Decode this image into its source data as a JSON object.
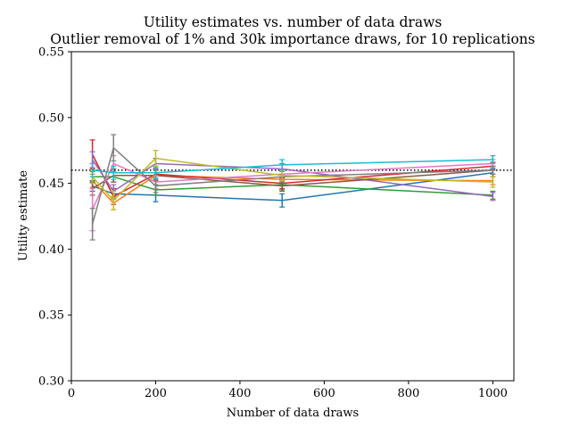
{
  "chart_data": {
    "type": "line",
    "title": "Utility estimates vs. number of data draws",
    "subtitle": "Outlier removal of 1% and 30k importance draws, for 10 replications",
    "xlabel": "Number of data draws",
    "ylabel": "Utility estimate",
    "xlim": [
      0,
      1050
    ],
    "ylim": [
      0.3,
      0.55
    ],
    "xticks": [
      0,
      200,
      400,
      600,
      800,
      1000
    ],
    "yticks": [
      0.3,
      0.35,
      0.4,
      0.45,
      0.5,
      0.55
    ],
    "xtick_labels": [
      "0",
      "200",
      "400",
      "600",
      "800",
      "1000"
    ],
    "ytick_labels": [
      "0.30",
      "0.35",
      "0.40",
      "0.45",
      "0.50",
      "0.55"
    ],
    "grid": false,
    "legend": false,
    "reference_line": {
      "y": 0.46,
      "style": "dotted",
      "color": "#000000"
    },
    "x": [
      50,
      100,
      200,
      500,
      1000
    ],
    "series": [
      {
        "color": "#1f77b4",
        "values": [
          0.448,
          0.442,
          0.441,
          0.437,
          0.458
        ],
        "errors": [
          0.004,
          0.004,
          0.005,
          0.005,
          0.003
        ]
      },
      {
        "color": "#ff7f0e",
        "values": [
          0.452,
          0.435,
          0.456,
          0.453,
          0.452
        ],
        "errors": [
          0.005,
          0.005,
          0.004,
          0.004,
          0.003
        ]
      },
      {
        "color": "#2ca02c",
        "values": [
          0.455,
          0.455,
          0.445,
          0.449,
          0.441
        ],
        "errors": [
          0.004,
          0.004,
          0.004,
          0.004,
          0.003
        ]
      },
      {
        "color": "#d62728",
        "values": [
          0.472,
          0.44,
          0.457,
          0.45,
          0.463
        ],
        "errors": [
          0.011,
          0.006,
          0.004,
          0.004,
          0.003
        ]
      },
      {
        "color": "#9467bd",
        "values": [
          0.468,
          0.444,
          0.465,
          0.461,
          0.44
        ],
        "errors": [
          0.006,
          0.005,
          0.004,
          0.004,
          0.003
        ]
      },
      {
        "color": "#8c564b",
        "values": [
          0.446,
          0.456,
          0.456,
          0.448,
          0.46
        ],
        "errors": [
          0.005,
          0.005,
          0.004,
          0.004,
          0.003
        ]
      },
      {
        "color": "#e377c2",
        "values": [
          0.43,
          0.465,
          0.451,
          0.457,
          0.465
        ],
        "errors": [
          0.016,
          0.006,
          0.005,
          0.004,
          0.003
        ]
      },
      {
        "color": "#7f7f7f",
        "values": [
          0.419,
          0.477,
          0.448,
          0.455,
          0.46
        ],
        "errors": [
          0.012,
          0.01,
          0.005,
          0.004,
          0.003
        ]
      },
      {
        "color": "#bcbd22",
        "values": [
          0.455,
          0.437,
          0.469,
          0.456,
          0.451
        ],
        "errors": [
          0.005,
          0.007,
          0.006,
          0.004,
          0.004
        ]
      },
      {
        "color": "#17becf",
        "values": [
          0.46,
          0.458,
          0.458,
          0.464,
          0.468
        ],
        "errors": [
          0.005,
          0.005,
          0.004,
          0.004,
          0.003
        ]
      }
    ]
  }
}
